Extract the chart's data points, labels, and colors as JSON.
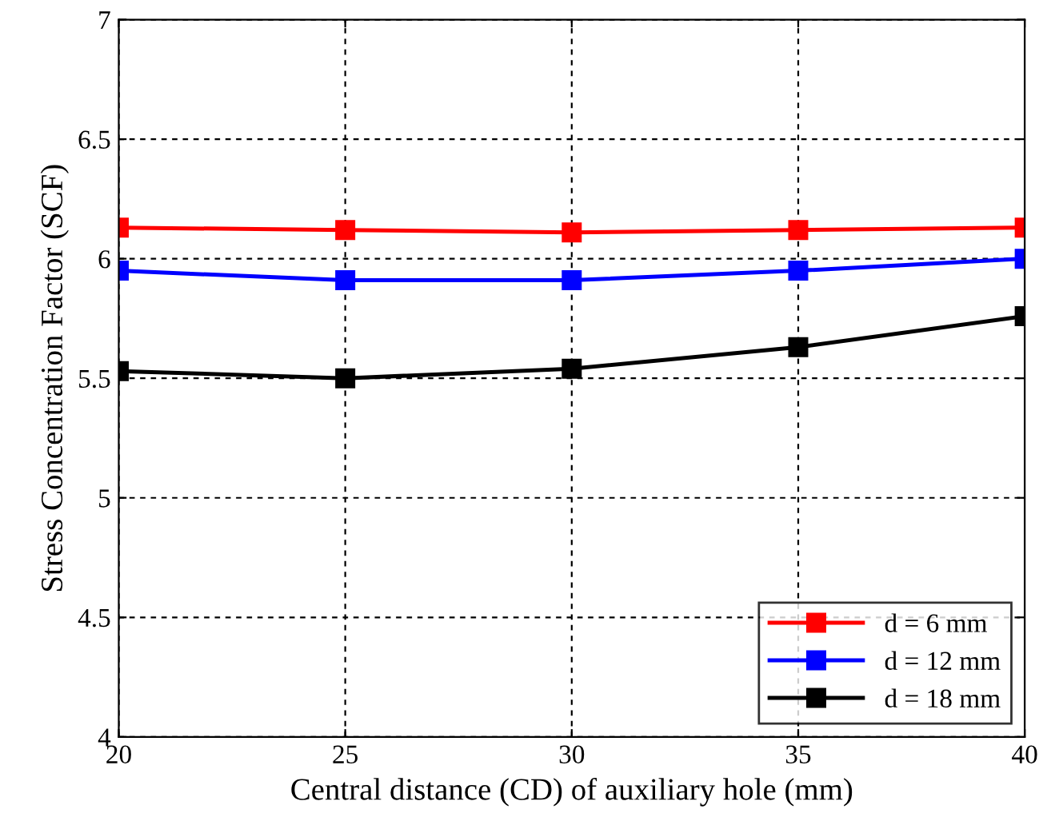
{
  "chart_data": {
    "type": "line",
    "xlabel": "Central distance (CD) of auxiliary hole (mm)",
    "ylabel": "Stress Concentration Factor (SCF)",
    "x": [
      20,
      25,
      30,
      35,
      40
    ],
    "series": [
      {
        "name": "d = 6 mm",
        "color": "#ff0000",
        "values": [
          6.13,
          6.12,
          6.11,
          6.12,
          6.13
        ]
      },
      {
        "name": "d = 12 mm",
        "color": "#0000ff",
        "values": [
          5.95,
          5.91,
          5.91,
          5.95,
          6.0
        ]
      },
      {
        "name": "d = 18 mm",
        "color": "#000000",
        "values": [
          5.53,
          5.5,
          5.54,
          5.63,
          5.76
        ]
      }
    ],
    "xlim": [
      20,
      40
    ],
    "xticks": [
      20,
      25,
      30,
      35,
      40
    ],
    "ylim": [
      4,
      7
    ],
    "yticks": [
      4,
      4.5,
      5,
      5.5,
      6,
      6.5,
      7
    ],
    "grid": true,
    "legend": "bottom right",
    "marker": "square",
    "line_style": "solid"
  }
}
